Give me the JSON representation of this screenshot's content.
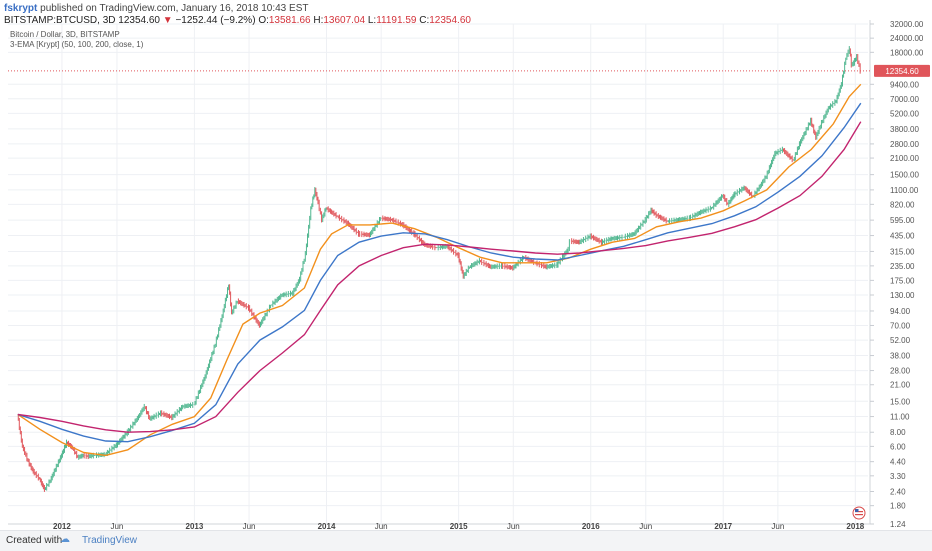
{
  "header": {
    "author": "fskrypt",
    "published": "published on TradingView.com, January 16, 2018 10:43 EST",
    "symbol": "BITSTAMP:BTCUSD, 3D",
    "last": "12354.60",
    "change": "−1252.44 (−9.2%)",
    "o_label": "O:",
    "o": "13581.66",
    "h_label": "H:",
    "h": "13607.04",
    "l_label": "L:",
    "l": "11191.59",
    "c_label": "C:",
    "c": "12354.60"
  },
  "legend": {
    "line1": "Bitcoin / Dollar, 3D, BITSTAMP",
    "line2": "3-EMA [Krypt] (50, 100, 200, close, 1)"
  },
  "footer": {
    "created": "Created with",
    "brand": "TradingView"
  },
  "colors": {
    "up": "#4fb68f",
    "down": "#e0555a",
    "ema50": "#f2901c",
    "ema100": "#3d77c9",
    "ema200": "#c2246e",
    "price_line": "#e0555a",
    "badge": "#e0555a",
    "grid": "#eef0f4"
  },
  "chart_data": {
    "type": "line",
    "title": "",
    "yscale": "log",
    "ylim": [
      1.24,
      32000
    ],
    "x_domain": [
      "2011-08-05",
      "2018-02-05"
    ],
    "last_price": 12354.6,
    "last_price_label": "12354.60",
    "y_ticks": [
      {
        "value": 1.24,
        "label": "1.24"
      },
      {
        "value": 1.8,
        "label": "1.80"
      },
      {
        "value": 2.4,
        "label": "2.40"
      },
      {
        "value": 3.3,
        "label": "3.30"
      },
      {
        "value": 4.4,
        "label": "4.40"
      },
      {
        "value": 6.0,
        "label": "6.00"
      },
      {
        "value": 8.0,
        "label": "8.00"
      },
      {
        "value": 11.0,
        "label": "11.00"
      },
      {
        "value": 15.0,
        "label": "15.00"
      },
      {
        "value": 21.0,
        "label": "21.00"
      },
      {
        "value": 28.0,
        "label": "28.00"
      },
      {
        "value": 38.0,
        "label": "38.00"
      },
      {
        "value": 52.0,
        "label": "52.00"
      },
      {
        "value": 70.0,
        "label": "70.00"
      },
      {
        "value": 94.0,
        "label": "94.00"
      },
      {
        "value": 130.0,
        "label": "130.00"
      },
      {
        "value": 175.0,
        "label": "175.00"
      },
      {
        "value": 235.0,
        "label": "235.00"
      },
      {
        "value": 315.0,
        "label": "315.00"
      },
      {
        "value": 435.0,
        "label": "435.00"
      },
      {
        "value": 595.0,
        "label": "595.00"
      },
      {
        "value": 820.0,
        "label": "820.00"
      },
      {
        "value": 1100.0,
        "label": "1100.00"
      },
      {
        "value": 1500.0,
        "label": "1500.00"
      },
      {
        "value": 2100.0,
        "label": "2100.00"
      },
      {
        "value": 2800.0,
        "label": "2800.00"
      },
      {
        "value": 3800.0,
        "label": "3800.00"
      },
      {
        "value": 5200.0,
        "label": "5200.00"
      },
      {
        "value": 7000.0,
        "label": "7000.00"
      },
      {
        "value": 9400.0,
        "label": "9400.00"
      },
      {
        "value": 18000.0,
        "label": "18000.00"
      },
      {
        "value": 24000.0,
        "label": "24000.00"
      },
      {
        "value": 32000.0,
        "label": "32000.00"
      }
    ],
    "x_ticks": [
      {
        "date": "2012-01-01",
        "label": "2012",
        "bold": true
      },
      {
        "date": "2012-06-01",
        "label": "Jun",
        "bold": false
      },
      {
        "date": "2013-01-01",
        "label": "2013",
        "bold": true
      },
      {
        "date": "2013-06-01",
        "label": "Jun",
        "bold": false
      },
      {
        "date": "2014-01-01",
        "label": "2014",
        "bold": true
      },
      {
        "date": "2014-06-01",
        "label": "Jun",
        "bold": false
      },
      {
        "date": "2015-01-01",
        "label": "2015",
        "bold": true
      },
      {
        "date": "2015-06-01",
        "label": "Jun",
        "bold": false
      },
      {
        "date": "2016-01-01",
        "label": "2016",
        "bold": true
      },
      {
        "date": "2016-06-01",
        "label": "Jun",
        "bold": false
      },
      {
        "date": "2017-01-01",
        "label": "2017",
        "bold": true
      },
      {
        "date": "2017-06-01",
        "label": "Jun",
        "bold": false
      },
      {
        "date": "2018-01-01",
        "label": "2018",
        "bold": true
      }
    ],
    "price": [
      [
        "2011-09-01",
        11.5
      ],
      [
        "2011-09-15",
        6.0
      ],
      [
        "2011-10-01",
        4.4
      ],
      [
        "2011-10-15",
        3.6
      ],
      [
        "2011-11-01",
        3.1
      ],
      [
        "2011-11-15",
        2.5
      ],
      [
        "2011-12-01",
        3.0
      ],
      [
        "2011-12-15",
        3.8
      ],
      [
        "2012-01-01",
        5.0
      ],
      [
        "2012-01-15",
        6.5
      ],
      [
        "2012-02-01",
        5.8
      ],
      [
        "2012-02-15",
        4.8
      ],
      [
        "2012-03-01",
        5.0
      ],
      [
        "2012-03-15",
        4.9
      ],
      [
        "2012-04-01",
        5.0
      ],
      [
        "2012-05-01",
        5.1
      ],
      [
        "2012-06-01",
        6.2
      ],
      [
        "2012-07-01",
        8.0
      ],
      [
        "2012-08-01",
        11.0
      ],
      [
        "2012-08-17",
        13.5
      ],
      [
        "2012-09-01",
        10.5
      ],
      [
        "2012-10-01",
        11.8
      ],
      [
        "2012-11-01",
        10.8
      ],
      [
        "2012-12-01",
        13.5
      ],
      [
        "2013-01-01",
        14.0
      ],
      [
        "2013-02-01",
        25.0
      ],
      [
        "2013-03-01",
        48.0
      ],
      [
        "2013-03-20",
        85.0
      ],
      [
        "2013-04-07",
        160.0
      ],
      [
        "2013-04-15",
        90.0
      ],
      [
        "2013-05-01",
        115.0
      ],
      [
        "2013-06-01",
        100.0
      ],
      [
        "2013-07-01",
        70.0
      ],
      [
        "2013-08-01",
        105.0
      ],
      [
        "2013-09-01",
        130.0
      ],
      [
        "2013-10-01",
        135.0
      ],
      [
        "2013-10-20",
        180.0
      ],
      [
        "2013-11-05",
        300.0
      ],
      [
        "2013-11-20",
        750.0
      ],
      [
        "2013-12-01",
        1100.0
      ],
      [
        "2013-12-10",
        850.0
      ],
      [
        "2013-12-20",
        600.0
      ],
      [
        "2014-01-01",
        760.0
      ],
      [
        "2014-02-01",
        640.0
      ],
      [
        "2014-03-01",
        560.0
      ],
      [
        "2014-04-01",
        450.0
      ],
      [
        "2014-05-01",
        440.0
      ],
      [
        "2014-06-01",
        620.0
      ],
      [
        "2014-07-01",
        600.0
      ],
      [
        "2014-08-01",
        540.0
      ],
      [
        "2014-09-01",
        450.0
      ],
      [
        "2014-10-01",
        360.0
      ],
      [
        "2014-11-01",
        340.0
      ],
      [
        "2014-12-01",
        350.0
      ],
      [
        "2015-01-01",
        290.0
      ],
      [
        "2015-01-15",
        190.0
      ],
      [
        "2015-02-01",
        230.0
      ],
      [
        "2015-03-01",
        260.0
      ],
      [
        "2015-04-01",
        230.0
      ],
      [
        "2015-05-01",
        235.0
      ],
      [
        "2015-06-01",
        225.0
      ],
      [
        "2015-07-01",
        280.0
      ],
      [
        "2015-08-01",
        250.0
      ],
      [
        "2015-09-01",
        230.0
      ],
      [
        "2015-10-01",
        240.0
      ],
      [
        "2015-11-01",
        330.0
      ],
      [
        "2015-11-05",
        390.0
      ],
      [
        "2015-12-01",
        380.0
      ],
      [
        "2016-01-01",
        430.0
      ],
      [
        "2016-02-01",
        380.0
      ],
      [
        "2016-03-01",
        410.0
      ],
      [
        "2016-04-01",
        420.0
      ],
      [
        "2016-05-01",
        450.0
      ],
      [
        "2016-06-01",
        600.0
      ],
      [
        "2016-06-17",
        730.0
      ],
      [
        "2016-07-01",
        660.0
      ],
      [
        "2016-08-01",
        580.0
      ],
      [
        "2016-09-01",
        600.0
      ],
      [
        "2016-10-01",
        620.0
      ],
      [
        "2016-11-01",
        700.0
      ],
      [
        "2016-12-01",
        760.0
      ],
      [
        "2017-01-01",
        980.0
      ],
      [
        "2017-01-15",
        820.0
      ],
      [
        "2017-02-01",
        1000.0
      ],
      [
        "2017-03-01",
        1150.0
      ],
      [
        "2017-03-25",
        960.0
      ],
      [
        "2017-04-15",
        1200.0
      ],
      [
        "2017-05-01",
        1450.0
      ],
      [
        "2017-05-25",
        2300.0
      ],
      [
        "2017-06-15",
        2500.0
      ],
      [
        "2017-07-15",
        2000.0
      ],
      [
        "2017-08-01",
        2800.0
      ],
      [
        "2017-09-01",
        4500.0
      ],
      [
        "2017-09-15",
        3200.0
      ],
      [
        "2017-10-01",
        4300.0
      ],
      [
        "2017-10-20",
        5800.0
      ],
      [
        "2017-11-10",
        6700.0
      ],
      [
        "2017-11-25",
        9500.0
      ],
      [
        "2017-12-07",
        16000.0
      ],
      [
        "2017-12-17",
        19500.0
      ],
      [
        "2017-12-22",
        14000.0
      ],
      [
        "2017-12-28",
        14500.0
      ],
      [
        "2018-01-06",
        16500.0
      ],
      [
        "2018-01-16",
        12354.6
      ]
    ],
    "series": [
      {
        "name": "EMA 50",
        "color": "#f2901c",
        "data": [
          [
            "2011-09-01",
            11.5
          ],
          [
            "2011-11-01",
            8.5
          ],
          [
            "2012-01-01",
            6.5
          ],
          [
            "2012-03-01",
            5.3
          ],
          [
            "2012-05-01",
            5.0
          ],
          [
            "2012-07-01",
            5.6
          ],
          [
            "2012-09-01",
            7.6
          ],
          [
            "2012-11-01",
            9.4
          ],
          [
            "2013-01-01",
            11.0
          ],
          [
            "2013-02-15",
            16.0
          ],
          [
            "2013-04-01",
            35.0
          ],
          [
            "2013-05-15",
            72.0
          ],
          [
            "2013-07-01",
            90.0
          ],
          [
            "2013-09-01",
            105.0
          ],
          [
            "2013-11-01",
            150.0
          ],
          [
            "2013-12-15",
            330.0
          ],
          [
            "2014-01-15",
            450.0
          ],
          [
            "2014-03-01",
            540.0
          ],
          [
            "2014-05-01",
            540.0
          ],
          [
            "2014-07-01",
            560.0
          ],
          [
            "2014-09-01",
            500.0
          ],
          [
            "2014-11-01",
            420.0
          ],
          [
            "2015-01-01",
            340.0
          ],
          [
            "2015-03-01",
            280.0
          ],
          [
            "2015-05-01",
            250.0
          ],
          [
            "2015-07-01",
            250.0
          ],
          [
            "2015-09-01",
            250.0
          ],
          [
            "2015-11-01",
            275.0
          ],
          [
            "2016-01-01",
            330.0
          ],
          [
            "2016-03-01",
            380.0
          ],
          [
            "2016-05-01",
            410.0
          ],
          [
            "2016-07-01",
            520.0
          ],
          [
            "2016-09-01",
            575.0
          ],
          [
            "2016-11-01",
            620.0
          ],
          [
            "2017-01-01",
            720.0
          ],
          [
            "2017-03-01",
            880.0
          ],
          [
            "2017-05-01",
            1100.0
          ],
          [
            "2017-07-01",
            1750.0
          ],
          [
            "2017-09-01",
            2500.0
          ],
          [
            "2017-11-01",
            4200.0
          ],
          [
            "2017-12-15",
            7300.0
          ],
          [
            "2018-01-16",
            9400.0
          ]
        ]
      },
      {
        "name": "EMA 100",
        "color": "#3d77c9",
        "data": [
          [
            "2011-09-01",
            11.5
          ],
          [
            "2011-11-01",
            10.0
          ],
          [
            "2012-01-01",
            8.5
          ],
          [
            "2012-03-01",
            7.4
          ],
          [
            "2012-05-01",
            6.7
          ],
          [
            "2012-07-01",
            6.6
          ],
          [
            "2012-09-01",
            7.3
          ],
          [
            "2012-11-01",
            8.3
          ],
          [
            "2013-01-01",
            9.6
          ],
          [
            "2013-03-01",
            14.0
          ],
          [
            "2013-05-01",
            32.0
          ],
          [
            "2013-07-01",
            52.0
          ],
          [
            "2013-09-01",
            68.0
          ],
          [
            "2013-11-01",
            95.0
          ],
          [
            "2013-12-15",
            175.0
          ],
          [
            "2014-02-01",
            290.0
          ],
          [
            "2014-04-01",
            380.0
          ],
          [
            "2014-06-01",
            430.0
          ],
          [
            "2014-08-01",
            460.0
          ],
          [
            "2014-10-01",
            450.0
          ],
          [
            "2014-12-01",
            400.0
          ],
          [
            "2015-02-01",
            345.0
          ],
          [
            "2015-04-01",
            305.0
          ],
          [
            "2015-06-01",
            280.0
          ],
          [
            "2015-08-01",
            270.0
          ],
          [
            "2015-10-01",
            265.0
          ],
          [
            "2015-12-01",
            290.0
          ],
          [
            "2016-02-01",
            320.0
          ],
          [
            "2016-04-01",
            350.0
          ],
          [
            "2016-06-01",
            400.0
          ],
          [
            "2016-08-01",
            460.0
          ],
          [
            "2016-10-01",
            505.0
          ],
          [
            "2016-12-01",
            555.0
          ],
          [
            "2017-02-01",
            650.0
          ],
          [
            "2017-04-01",
            780.0
          ],
          [
            "2017-06-01",
            1050.0
          ],
          [
            "2017-08-01",
            1450.0
          ],
          [
            "2017-10-01",
            2200.0
          ],
          [
            "2017-12-01",
            3900.0
          ],
          [
            "2018-01-16",
            6400.0
          ]
        ]
      },
      {
        "name": "EMA 200",
        "color": "#c2246e",
        "data": [
          [
            "2011-09-01",
            11.5
          ],
          [
            "2011-11-01",
            10.8
          ],
          [
            "2012-01-01",
            10.0
          ],
          [
            "2012-03-01",
            9.1
          ],
          [
            "2012-05-01",
            8.4
          ],
          [
            "2012-07-01",
            8.0
          ],
          [
            "2012-09-01",
            8.1
          ],
          [
            "2012-11-01",
            8.4
          ],
          [
            "2013-01-01",
            8.9
          ],
          [
            "2013-03-01",
            11.0
          ],
          [
            "2013-05-01",
            18.0
          ],
          [
            "2013-07-01",
            28.0
          ],
          [
            "2013-09-01",
            40.0
          ],
          [
            "2013-11-01",
            58.0
          ],
          [
            "2013-12-15",
            95.0
          ],
          [
            "2014-02-01",
            160.0
          ],
          [
            "2014-04-01",
            235.0
          ],
          [
            "2014-06-01",
            290.0
          ],
          [
            "2014-08-01",
            340.0
          ],
          [
            "2014-10-01",
            365.0
          ],
          [
            "2014-12-01",
            360.0
          ],
          [
            "2015-02-01",
            345.0
          ],
          [
            "2015-04-01",
            330.0
          ],
          [
            "2015-06-01",
            318.0
          ],
          [
            "2015-08-01",
            305.0
          ],
          [
            "2015-10-01",
            298.0
          ],
          [
            "2015-12-01",
            305.0
          ],
          [
            "2016-02-01",
            320.0
          ],
          [
            "2016-04-01",
            335.0
          ],
          [
            "2016-06-01",
            355.0
          ],
          [
            "2016-08-01",
            390.0
          ],
          [
            "2016-10-01",
            420.0
          ],
          [
            "2016-12-01",
            455.0
          ],
          [
            "2017-02-01",
            520.0
          ],
          [
            "2017-04-01",
            600.0
          ],
          [
            "2017-06-01",
            760.0
          ],
          [
            "2017-08-01",
            980.0
          ],
          [
            "2017-10-01",
            1450.0
          ],
          [
            "2017-12-01",
            2500.0
          ],
          [
            "2018-01-16",
            4400.0
          ]
        ]
      }
    ]
  }
}
